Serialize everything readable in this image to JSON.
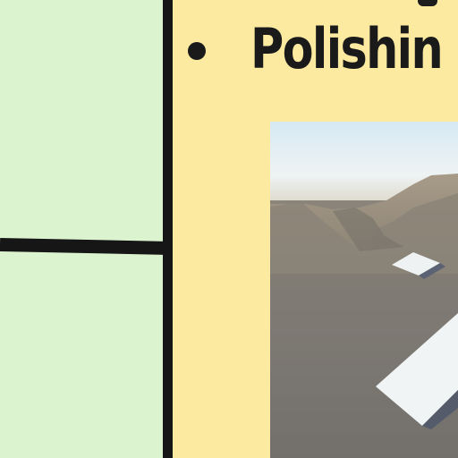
{
  "slide": {
    "bullet_text": "Polishin",
    "screenshot_icon": "game-terrain-screenshot"
  },
  "colors": {
    "left_panel": "#dcf3cf",
    "right_panel": "#fbeaa0",
    "divider": "#161616",
    "text": "#1a1a1a"
  }
}
